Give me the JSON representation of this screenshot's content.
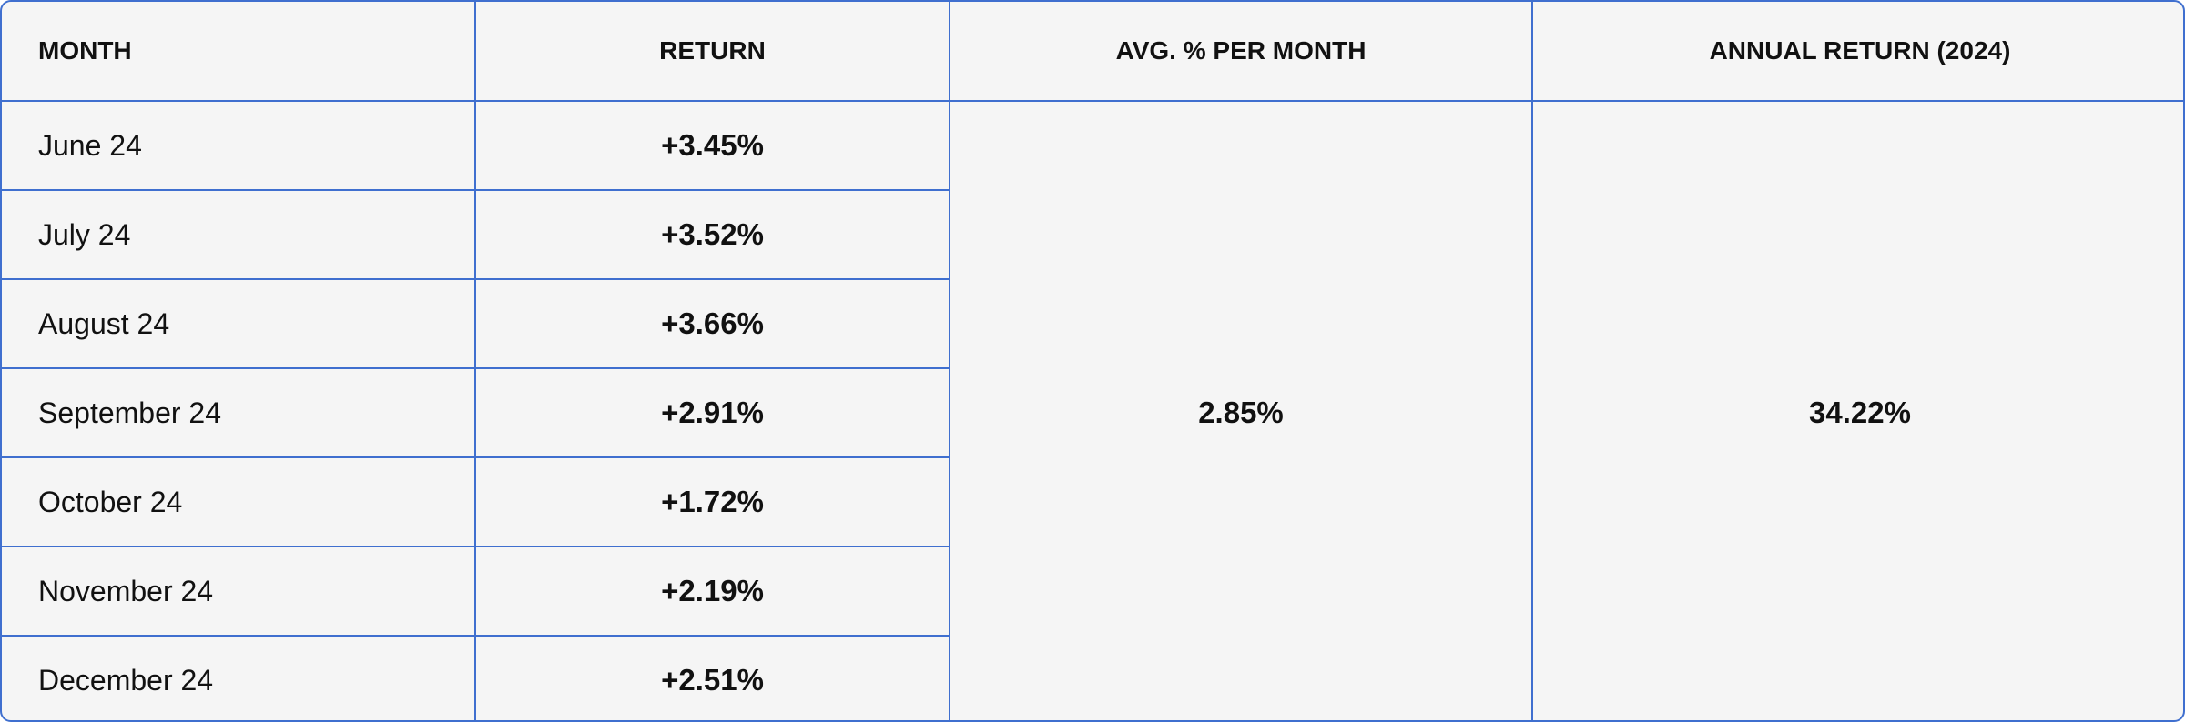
{
  "table": {
    "header": [
      "MONTH",
      "RETURN",
      "AVG. % PER MONTH",
      "ANNUAL RETURN (2024)"
    ],
    "rows": [
      [
        "June 24",
        "+3.45%"
      ],
      [
        "July 24",
        "+3.52%"
      ],
      [
        "August 24",
        "+3.66%"
      ],
      [
        "September 24",
        "+2.91%"
      ],
      [
        "October 24",
        "+1.72%"
      ],
      [
        "November 24",
        "+2.19%"
      ],
      [
        "December 24",
        "+2.51%"
      ]
    ],
    "avg_per_month": "2.85%",
    "annual_return": "34.22%"
  }
}
